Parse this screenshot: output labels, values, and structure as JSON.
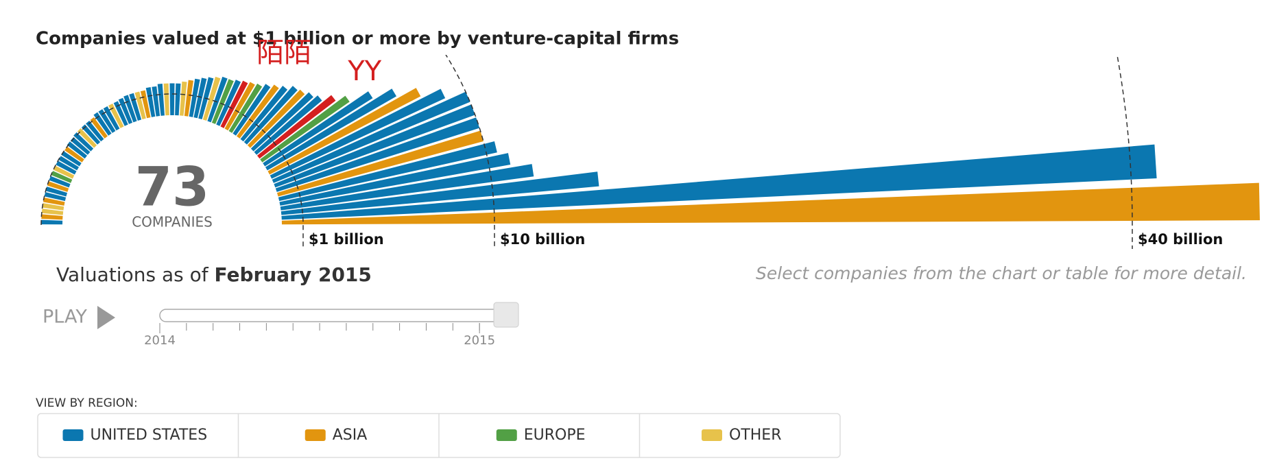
{
  "chart_data": {
    "type": "radial-bar",
    "title": "Companies valued at $1 billion or more by venture-capital firms",
    "count": 73,
    "count_label": "COMPANIES",
    "categories": [
      null,
      null,
      null,
      null,
      null,
      null,
      null,
      null,
      null,
      null,
      null,
      null,
      null,
      null,
      null,
      null,
      null,
      null,
      null,
      null,
      null,
      null,
      null,
      null,
      null,
      null,
      null,
      null,
      null,
      null,
      null,
      null,
      null,
      null,
      null,
      null,
      null,
      null,
      null,
      null,
      null,
      null,
      null,
      null,
      null,
      null,
      null,
      "陌陌",
      null,
      null,
      null,
      null,
      null,
      null,
      null,
      null,
      null,
      "YY",
      null,
      null,
      null,
      null,
      null,
      null,
      null,
      null,
      null,
      null,
      null,
      null,
      null,
      null,
      null
    ],
    "values": [
      1,
      1,
      1,
      1,
      1,
      1,
      1,
      1,
      1,
      1,
      1,
      1,
      1,
      1,
      1,
      1.05,
      1.05,
      1.1,
      1.1,
      1.1,
      1.1,
      1.1,
      1.2,
      1.2,
      1.2,
      1.2,
      1.2,
      1.25,
      1.3,
      1.3,
      1.3,
      1.3,
      1.4,
      1.4,
      1.5,
      1.5,
      1.5,
      1.5,
      1.6,
      1.7,
      1.8,
      1.9,
      2,
      2.1,
      2.2,
      2.2,
      2.3,
      2.4,
      2.5,
      2.6,
      2.8,
      3,
      3.2,
      3.5,
      3.6,
      3.8,
      4,
      4.5,
      5,
      6,
      7,
      8,
      9,
      10,
      10,
      10,
      10,
      10.5,
      11,
      12,
      15,
      41.2,
      46
    ],
    "colors": [
      "#0b77b0",
      "#e2950f",
      "#e7c24b",
      "#e7c24b",
      "#e2950f",
      "#0b77b0",
      "#0b77b0",
      "#e2950f",
      "#0b77b0",
      "#52a045",
      "#e7c24b",
      "#0b77b0",
      "#0b77b0",
      "#0b77b0",
      "#e2950f",
      "#0b77b0",
      "#0b77b0",
      "#0b77b0",
      "#e7c24b",
      "#0b77b0",
      "#0b77b0",
      "#e2950f",
      "#0b77b0",
      "#0b77b0",
      "#0b77b0",
      "#e7c24b",
      "#0b77b0",
      "#0b77b0",
      "#0b77b0",
      "#0b77b0",
      "#e7c24b",
      "#e2950f",
      "#0b77b0",
      "#0b77b0",
      "#0b77b0",
      "#e7c24b",
      "#0b77b0",
      "#0b77b0",
      "#e7c24b",
      "#e2950f",
      "#0b77b0",
      "#0b77b0",
      "#0b77b0",
      "#e7c24b",
      "#0b77b0",
      "#52a045",
      "#0b77b0",
      "#d41f1f",
      "#e2950f",
      "#52a045",
      "#0b77b0",
      "#e2950f",
      "#0b77b0",
      "#0b77b0",
      "#e2950f",
      "#0b77b0",
      "#0b77b0",
      "#d41f1f",
      "#52a045",
      "#0b77b0",
      "#0b77b0",
      "#e2950f",
      "#0b77b0",
      "#0b77b0",
      "#0b77b0",
      "#0b77b0",
      "#e2950f",
      "#0b77b0",
      "#0b77b0",
      "#0b77b0",
      "#0b77b0",
      "#0b77b0",
      "#e2950f"
    ],
    "annotation_color": "#d41f1f",
    "rlim": [
      0,
      50
    ],
    "rticks": [
      {
        "value": 1,
        "label": "$1 billion"
      },
      {
        "value": 10,
        "label": "$10 billion"
      },
      {
        "value": 40,
        "label": "$40 billion"
      }
    ],
    "legend_title": "VIEW BY REGION:",
    "legend": [
      {
        "name": "UNITED STATES",
        "color": "#0b77b0"
      },
      {
        "name": "ASIA",
        "color": "#e2950f"
      },
      {
        "name": "EUROPE",
        "color": "#52a045"
      },
      {
        "name": "OTHER",
        "color": "#e7c24b"
      }
    ]
  },
  "controls": {
    "date_prefix": "Valuations as of",
    "date": "February 2015",
    "hint": "Select companies from the chart or table for more detail.",
    "play": "PLAY",
    "slider": {
      "xlim": [
        0,
        13
      ],
      "xticks": [
        {
          "value": 0,
          "label": "2014"
        },
        {
          "value": 12,
          "label": "2015"
        }
      ],
      "value": 13
    }
  }
}
